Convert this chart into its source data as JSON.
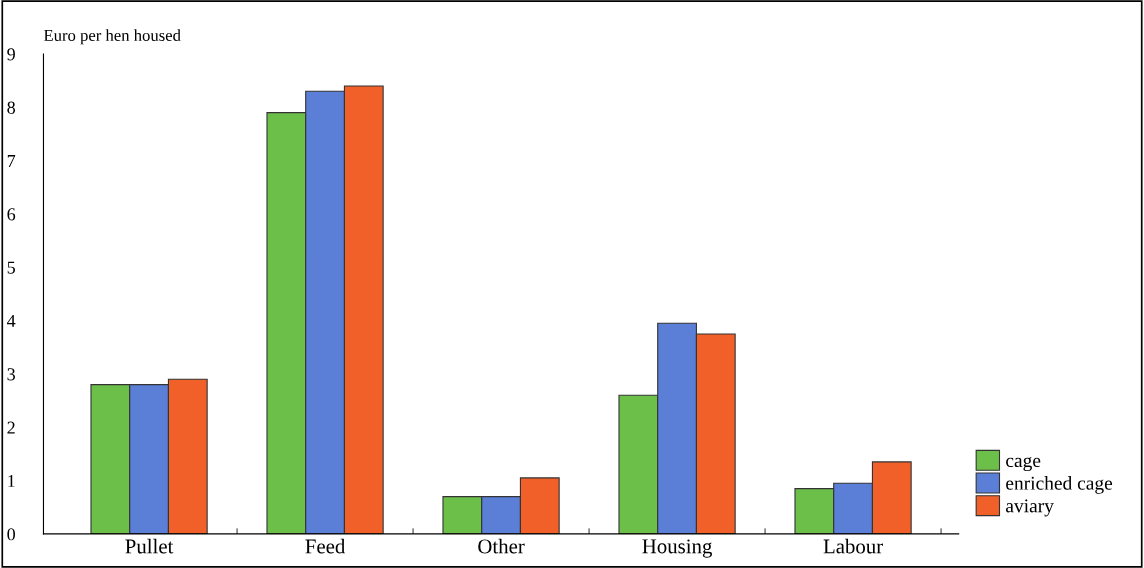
{
  "chart_data": {
    "type": "bar",
    "ylabel": "Euro per hen housed",
    "categories": [
      "Pullet",
      "Feed",
      "Other",
      "Housing",
      "Labour"
    ],
    "series": [
      {
        "name": "cage",
        "color": "#6cc04a",
        "values": [
          2.8,
          7.9,
          0.7,
          2.6,
          0.85
        ]
      },
      {
        "name": "enriched cage",
        "color": "#5b7fd6",
        "values": [
          2.8,
          8.3,
          0.7,
          3.95,
          0.95
        ]
      },
      {
        "name": "aviary",
        "color": "#f06028",
        "values": [
          2.9,
          8.4,
          1.05,
          3.75,
          1.35
        ]
      }
    ],
    "ylim": [
      0,
      9
    ],
    "yticks": [
      0,
      1,
      2,
      3,
      4,
      5,
      6,
      7,
      8,
      9
    ],
    "grid": false,
    "legend": "bottom right"
  }
}
